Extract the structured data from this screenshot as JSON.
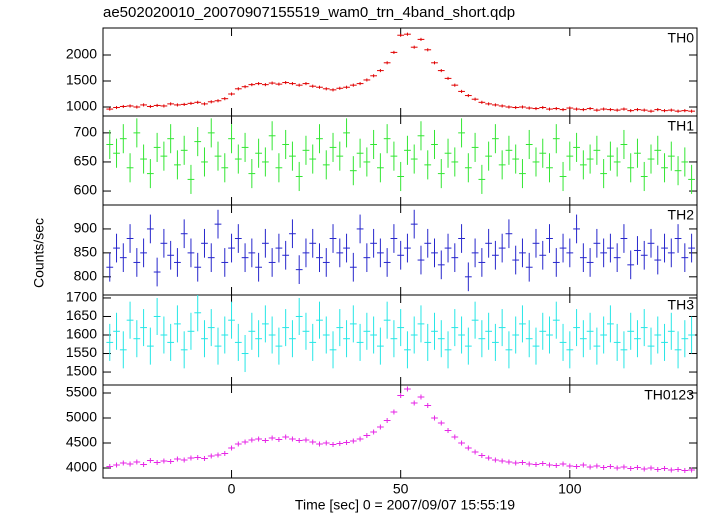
{
  "chart_data": {
    "type": "line",
    "title": "ae502020010_20070907155519_wam0_trn_4band_short.qdp",
    "xlabel": "Time [sec] 0 = 2007/09/07 15:55:19",
    "ylabel": "Counts/sec",
    "xlim": [
      -38,
      137.6
    ],
    "xticks": [
      0,
      50,
      100
    ],
    "x": [
      -36,
      -34,
      -32,
      -30,
      -28,
      -26,
      -24,
      -22,
      -20,
      -18,
      -16,
      -14,
      -12,
      -10,
      -8,
      -6,
      -4,
      -2,
      0,
      2,
      4,
      6,
      8,
      10,
      12,
      14,
      16,
      18,
      20,
      22,
      24,
      26,
      28,
      30,
      32,
      34,
      36,
      38,
      40,
      42,
      44,
      46,
      48,
      50,
      52,
      54,
      56,
      58,
      60,
      62,
      64,
      66,
      68,
      70,
      72,
      74,
      76,
      78,
      80,
      82,
      84,
      86,
      88,
      90,
      92,
      94,
      96,
      98,
      100,
      102,
      104,
      106,
      108,
      110,
      112,
      114,
      116,
      118,
      120,
      122,
      124,
      126,
      128,
      130,
      132,
      134,
      136
    ],
    "panels": [
      {
        "name": "TH0",
        "color": "#e00000",
        "ylim": [
          827,
          2519
        ],
        "yticks": [
          1000,
          1500,
          2000
        ],
        "yerr": 30,
        "values": [
          960,
          990,
          1010,
          1020,
          1000,
          1040,
          1010,
          1030,
          1020,
          1060,
          1040,
          1050,
          1070,
          1090,
          1060,
          1100,
          1120,
          1160,
          1250,
          1350,
          1390,
          1430,
          1450,
          1430,
          1460,
          1440,
          1470,
          1450,
          1420,
          1450,
          1400,
          1380,
          1350,
          1330,
          1360,
          1380,
          1420,
          1450,
          1520,
          1600,
          1700,
          1850,
          2050,
          2380,
          2400,
          2150,
          2300,
          2100,
          1850,
          1700,
          1550,
          1420,
          1300,
          1220,
          1150,
          1090,
          1060,
          1040,
          1020,
          1000,
          990,
          1000,
          980,
          970,
          990,
          960,
          970,
          950,
          980,
          960,
          950,
          970,
          940,
          960,
          950,
          940,
          960,
          930,
          950,
          940,
          920,
          950,
          930,
          940,
          920,
          930,
          920
        ]
      },
      {
        "name": "TH1",
        "color": "#33e633",
        "ylim": [
          576,
          729
        ],
        "yticks": [
          600,
          650,
          700
        ],
        "yerr": 25,
        "values": [
          680,
          665,
          690,
          640,
          700,
          655,
          630,
          675,
          660,
          690,
          645,
          670,
          620,
          685,
          650,
          700,
          660,
          640,
          690,
          655,
          675,
          630,
          665,
          650,
          695,
          640,
          680,
          660,
          625,
          670,
          655,
          690,
          645,
          675,
          660,
          700,
          635,
          665,
          650,
          680,
          640,
          690,
          660,
          625,
          670,
          655,
          695,
          645,
          680,
          630,
          665,
          650,
          700,
          640,
          675,
          620,
          660,
          690,
          645,
          670,
          655,
          630,
          680,
          650,
          665,
          640,
          690,
          625,
          660,
          675,
          645,
          655,
          670,
          630,
          660,
          650,
          680,
          640,
          665,
          625,
          655,
          670,
          640,
          660,
          635,
          650,
          620
        ]
      },
      {
        "name": "TH2",
        "color": "#2626cc",
        "ylim": [
          762,
          950
        ],
        "yticks": [
          800,
          850,
          900
        ],
        "yerr": 30,
        "values": [
          820,
          860,
          840,
          880,
          830,
          850,
          900,
          810,
          870,
          845,
          830,
          890,
          850,
          820,
          870,
          840,
          910,
          830,
          860,
          880,
          840,
          850,
          820,
          870,
          830,
          860,
          845,
          890,
          815,
          850,
          870,
          840,
          830,
          880,
          850,
          860,
          820,
          900,
          840,
          870,
          850,
          830,
          880,
          845,
          860,
          910,
          835,
          870,
          850,
          825,
          860,
          840,
          880,
          800,
          850,
          830,
          870,
          845,
          860,
          890,
          835,
          850,
          820,
          870,
          845,
          880,
          830,
          860,
          850,
          900,
          840,
          830,
          870,
          850,
          860,
          840,
          880,
          825,
          855,
          845,
          870,
          835,
          860,
          850,
          880,
          840,
          860
        ]
      },
      {
        "name": "TH3",
        "color": "#26e6e6",
        "ylim": [
          1465,
          1708
        ],
        "yticks": [
          1500,
          1550,
          1600,
          1650,
          1700
        ],
        "yerr": 50,
        "values": [
          1580,
          1610,
          1560,
          1640,
          1590,
          1620,
          1570,
          1650,
          1600,
          1580,
          1630,
          1560,
          1610,
          1660,
          1590,
          1620,
          1570,
          1600,
          1640,
          1580,
          1550,
          1610,
          1590,
          1630,
          1600,
          1570,
          1620,
          1590,
          1650,
          1610,
          1580,
          1640,
          1600,
          1560,
          1620,
          1590,
          1630,
          1580,
          1610,
          1600,
          1570,
          1640,
          1590,
          1620,
          1560,
          1600,
          1630,
          1580,
          1610,
          1590,
          1560,
          1620,
          1600,
          1570,
          1640,
          1590,
          1610,
          1580,
          1620,
          1560,
          1600,
          1630,
          1590,
          1570,
          1610,
          1600,
          1640,
          1580,
          1560,
          1620,
          1590,
          1610,
          1570,
          1600,
          1630,
          1580,
          1560,
          1610,
          1590,
          1620,
          1570,
          1600,
          1580,
          1610,
          1560,
          1590,
          1600
        ]
      },
      {
        "name": "TH0123",
        "color": "#e626e6",
        "ylim": [
          3800,
          5660
        ],
        "yticks": [
          4000,
          4500,
          5000,
          5500
        ],
        "yerr": 50,
        "values": [
          4030,
          4060,
          4100,
          4080,
          4120,
          4070,
          4150,
          4110,
          4140,
          4130,
          4180,
          4160,
          4200,
          4210,
          4190,
          4240,
          4260,
          4290,
          4400,
          4480,
          4520,
          4560,
          4580,
          4550,
          4600,
          4570,
          4620,
          4580,
          4550,
          4560,
          4520,
          4480,
          4500,
          4470,
          4490,
          4510,
          4540,
          4580,
          4650,
          4720,
          4820,
          4950,
          5120,
          5450,
          5580,
          5300,
          5420,
          5250,
          5000,
          4900,
          4750,
          4620,
          4500,
          4400,
          4320,
          4250,
          4200,
          4160,
          4140,
          4120,
          4100,
          4110,
          4080,
          4070,
          4090,
          4060,
          4050,
          4080,
          4040,
          4030,
          4060,
          4020,
          4040,
          4010,
          4030,
          4000,
          4020,
          3990,
          4010,
          3980,
          4000,
          3970,
          3990,
          3960,
          3970,
          3950,
          3960
        ]
      }
    ]
  }
}
